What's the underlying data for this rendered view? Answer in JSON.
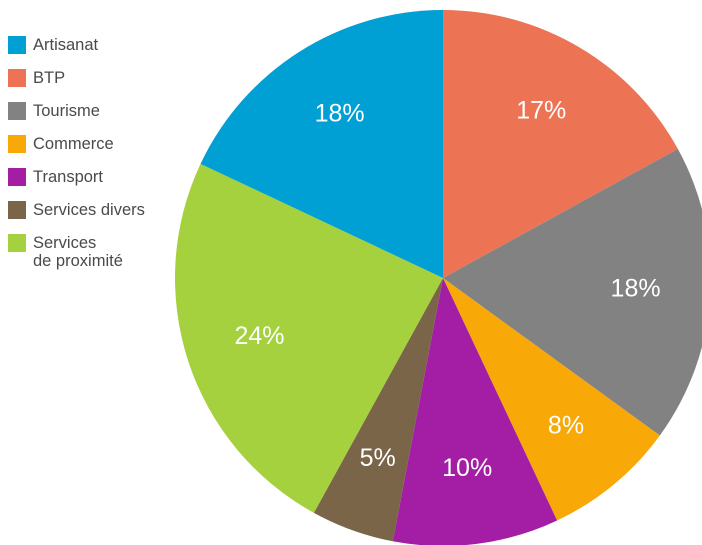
{
  "chart_data": {
    "type": "pie",
    "title": "",
    "legend_position": "top-left",
    "start_angle_deg": 0,
    "direction": "clockwise",
    "slices": [
      {
        "name": "BTP",
        "value": 17,
        "label": "17%",
        "color": "#ec7455"
      },
      {
        "name": "Tourisme",
        "value": 18,
        "label": "18%",
        "color": "#828282"
      },
      {
        "name": "Commerce",
        "value": 8,
        "label": "8%",
        "color": "#f8a807"
      },
      {
        "name": "Transport",
        "value": 10,
        "label": "10%",
        "color": "#a31ea5"
      },
      {
        "name": "Services divers",
        "value": 5,
        "label": "5%",
        "color": "#7a6548"
      },
      {
        "name": "Services de proximité",
        "value": 24,
        "label": "24%",
        "color": "#a4d13d"
      },
      {
        "name": "Artisanat",
        "value": 18,
        "label": "18%",
        "color": "#00a0d4"
      }
    ],
    "legend_items": [
      {
        "label": "Artisanat",
        "color": "#00a0d4"
      },
      {
        "label": "BTP",
        "color": "#ec7455"
      },
      {
        "label": "Tourisme",
        "color": "#828282"
      },
      {
        "label": "Commerce",
        "color": "#f8a807"
      },
      {
        "label": "Transport",
        "color": "#a31ea5"
      },
      {
        "label": "Services divers",
        "color": "#7a6548"
      },
      {
        "label": "Services\nde proximité",
        "color": "#a4d13d"
      }
    ]
  }
}
